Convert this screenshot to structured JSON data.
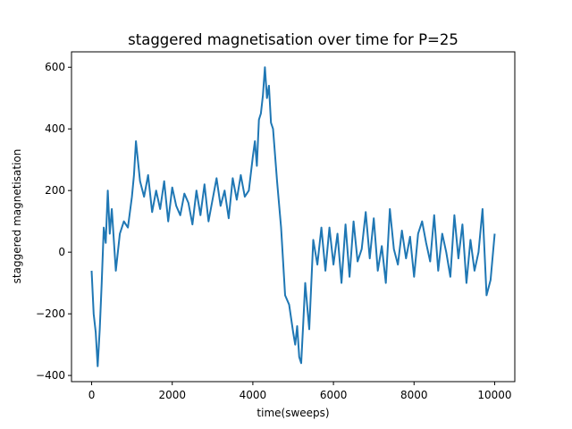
{
  "chart_data": {
    "type": "line",
    "title": "staggered magnetisation over time for P=25",
    "xlabel": "time(sweeps)",
    "ylabel": "staggered magnetisation",
    "xlim": [
      -500,
      10500
    ],
    "ylim": [
      -420,
      650
    ],
    "x_ticks": [
      0,
      2000,
      4000,
      6000,
      8000,
      10000
    ],
    "x_tick_labels": [
      "0",
      "2000",
      "4000",
      "6000",
      "8000",
      "10000"
    ],
    "y_ticks": [
      -400,
      -200,
      0,
      200,
      400,
      600
    ],
    "y_tick_labels": [
      "−400",
      "−200",
      "0",
      "200",
      "400",
      "600"
    ],
    "grid": false,
    "series": [
      {
        "color": "#1f77b4",
        "x": [
          0,
          50,
          100,
          150,
          200,
          250,
          300,
          350,
          400,
          450,
          500,
          600,
          700,
          800,
          900,
          1000,
          1050,
          1100,
          1200,
          1300,
          1400,
          1500,
          1600,
          1700,
          1800,
          1900,
          2000,
          2100,
          2200,
          2300,
          2400,
          2500,
          2600,
          2700,
          2800,
          2900,
          3000,
          3100,
          3200,
          3300,
          3400,
          3500,
          3600,
          3700,
          3800,
          3900,
          4000,
          4050,
          4100,
          4150,
          4200,
          4250,
          4300,
          4350,
          4400,
          4450,
          4500,
          4600,
          4700,
          4800,
          4900,
          5000,
          5050,
          5100,
          5150,
          5200,
          5250,
          5300,
          5400,
          5500,
          5600,
          5700,
          5800,
          5900,
          6000,
          6100,
          6200,
          6300,
          6400,
          6500,
          6600,
          6700,
          6800,
          6900,
          7000,
          7100,
          7200,
          7300,
          7400,
          7500,
          7600,
          7700,
          7800,
          7900,
          8000,
          8100,
          8200,
          8300,
          8400,
          8500,
          8600,
          8700,
          8800,
          8900,
          9000,
          9100,
          9200,
          9300,
          9400,
          9500,
          9600,
          9700,
          9800,
          9900,
          10000
        ],
        "y": [
          -60,
          -200,
          -260,
          -370,
          -250,
          -100,
          80,
          30,
          200,
          60,
          140,
          -60,
          60,
          100,
          80,
          180,
          250,
          360,
          230,
          180,
          250,
          130,
          200,
          140,
          230,
          100,
          210,
          150,
          120,
          190,
          160,
          90,
          200,
          120,
          220,
          100,
          170,
          240,
          150,
          200,
          110,
          240,
          170,
          250,
          180,
          200,
          310,
          360,
          280,
          430,
          450,
          510,
          600,
          500,
          540,
          420,
          400,
          230,
          80,
          -140,
          -170,
          -260,
          -300,
          -240,
          -340,
          -360,
          -230,
          -100,
          -250,
          40,
          -40,
          80,
          -60,
          80,
          -40,
          60,
          -100,
          90,
          -80,
          100,
          -30,
          10,
          130,
          -20,
          110,
          -60,
          20,
          -100,
          140,
          10,
          -40,
          70,
          -20,
          50,
          -80,
          60,
          100,
          30,
          -30,
          120,
          -60,
          60,
          0,
          -80,
          120,
          -20,
          90,
          -100,
          40,
          -60,
          0,
          140,
          -140,
          -90,
          60
        ]
      }
    ]
  }
}
